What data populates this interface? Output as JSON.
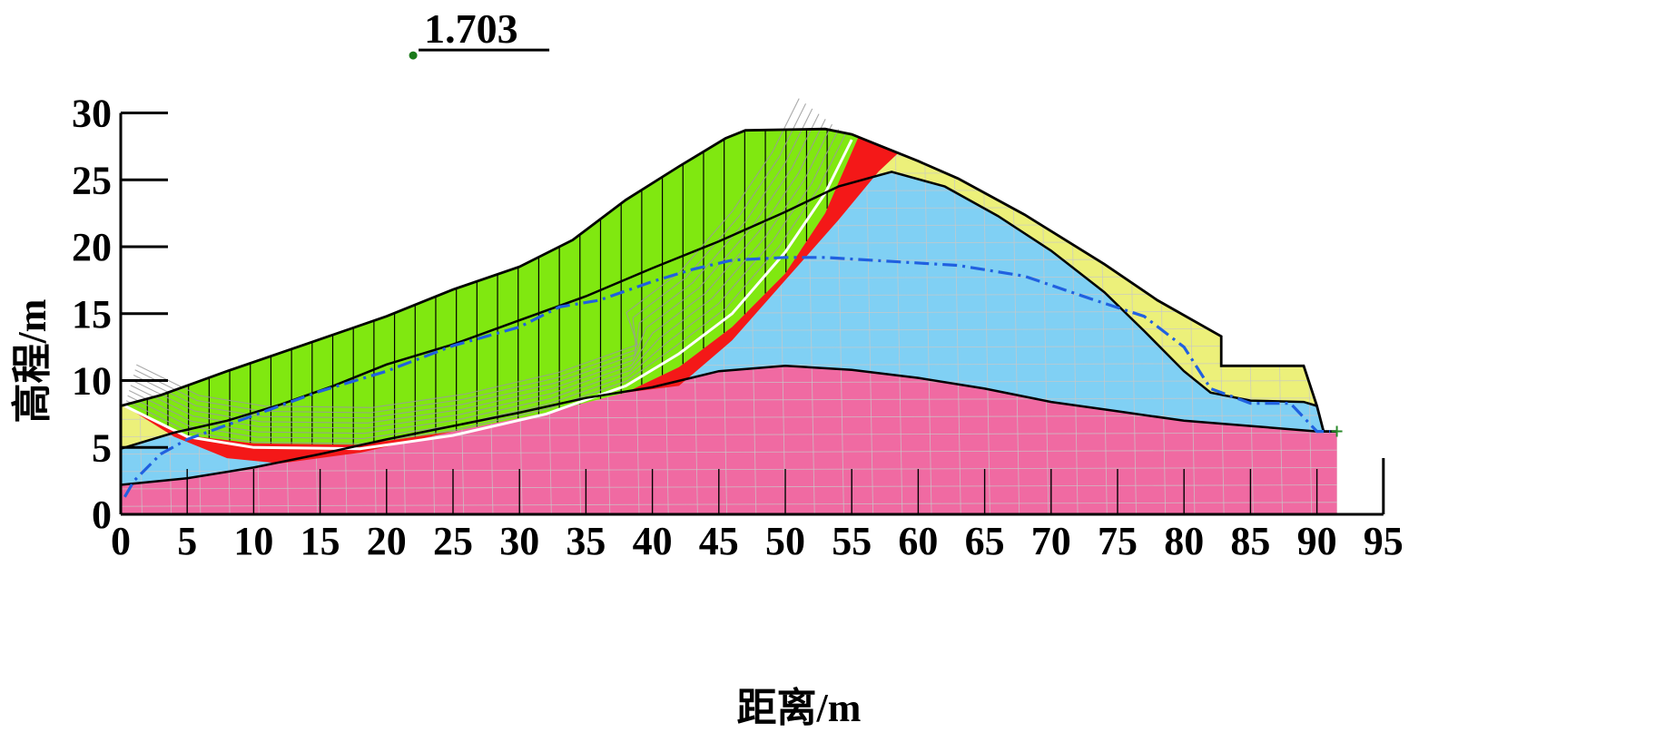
{
  "factor_of_safety": "1.703",
  "axes": {
    "x_title": "距离/m",
    "y_title": "高程/m",
    "x_ticks": [
      "0",
      "5",
      "10",
      "15",
      "20",
      "25",
      "30",
      "35",
      "40",
      "45",
      "50",
      "55",
      "60",
      "65",
      "70",
      "75",
      "80",
      "85",
      "90",
      "95"
    ],
    "y_ticks": [
      "0",
      "5",
      "10",
      "15",
      "20",
      "25",
      "30"
    ],
    "x_range": [
      0,
      95
    ],
    "y_range": [
      0,
      30
    ]
  },
  "layers": {
    "sliding_mass": {
      "color": "#80e810"
    },
    "upper_soil": {
      "color": "#ecf07a"
    },
    "middle_soil": {
      "color": "#80d0f4"
    },
    "bedrock": {
      "color": "#f06aa2"
    },
    "slip_band": {
      "color": "#f41818"
    },
    "water_table": {
      "color": "#2060e0"
    }
  },
  "geometry": {
    "surface": [
      [
        0,
        8.1
      ],
      [
        3,
        8.9
      ],
      [
        8,
        10.7
      ],
      [
        13,
        12.4
      ],
      [
        20,
        14.8
      ],
      [
        25,
        16.8
      ],
      [
        30,
        18.5
      ],
      [
        34,
        20.5
      ],
      [
        38,
        23.5
      ],
      [
        42,
        26
      ],
      [
        45.5,
        28.1
      ],
      [
        47,
        28.7
      ],
      [
        53,
        28.8
      ],
      [
        55,
        28.4
      ],
      [
        57,
        27.6
      ],
      [
        60,
        26.4
      ],
      [
        63,
        25.1
      ],
      [
        68,
        22.4
      ],
      [
        74,
        18.7
      ],
      [
        78,
        16.0
      ],
      [
        82.8,
        13.3
      ],
      [
        82.8,
        11.1
      ],
      [
        89,
        11.1
      ],
      [
        90,
        8.1
      ],
      [
        90.5,
        6.2
      ],
      [
        91.5,
        6.2
      ],
      [
        91.5,
        0
      ],
      [
        0,
        0
      ]
    ],
    "rock_top": [
      [
        0,
        2.2
      ],
      [
        5,
        2.7
      ],
      [
        10,
        3.5
      ],
      [
        15,
        4.5
      ],
      [
        20,
        5.6
      ],
      [
        25,
        6.6
      ],
      [
        30,
        7.6
      ],
      [
        35,
        8.7
      ],
      [
        40,
        9.5
      ],
      [
        45,
        10.7
      ],
      [
        50,
        11.1
      ],
      [
        55,
        10.8
      ],
      [
        60,
        10.2
      ],
      [
        65,
        9.4
      ],
      [
        70,
        8.4
      ],
      [
        75,
        7.7
      ],
      [
        80,
        7.0
      ],
      [
        85,
        6.6
      ],
      [
        90,
        6.2
      ],
      [
        91.5,
        6.2
      ]
    ],
    "middle_top": [
      [
        0,
        4.9
      ],
      [
        4,
        6.1
      ],
      [
        8,
        7.0
      ],
      [
        12,
        8.2
      ],
      [
        16,
        9.6
      ],
      [
        20,
        11.2
      ],
      [
        25,
        12.7
      ],
      [
        30,
        14.5
      ],
      [
        35,
        16.3
      ],
      [
        40,
        18.4
      ],
      [
        45,
        20.4
      ],
      [
        50,
        22.6
      ],
      [
        54,
        24.5
      ],
      [
        58,
        25.6
      ],
      [
        62,
        24.5
      ],
      [
        66,
        22.3
      ],
      [
        70,
        19.7
      ],
      [
        74,
        16.6
      ],
      [
        77,
        13.7
      ],
      [
        80,
        10.7
      ],
      [
        82,
        9.1
      ],
      [
        85,
        8.5
      ],
      [
        89,
        8.4
      ],
      [
        90,
        8.1
      ]
    ],
    "slip_top": [
      [
        0.3,
        8.1
      ],
      [
        5,
        5.9
      ],
      [
        10,
        5.3
      ],
      [
        18,
        5.2
      ],
      [
        25,
        6.2
      ],
      [
        32,
        7.6
      ],
      [
        38,
        9.1
      ],
      [
        42,
        11.0
      ],
      [
        46,
        14.0
      ],
      [
        50,
        18.0
      ],
      [
        53,
        22.5
      ],
      [
        55.5,
        28.2
      ]
    ],
    "slip_bot": [
      [
        4,
        5.8
      ],
      [
        8,
        4.2
      ],
      [
        12,
        3.8
      ],
      [
        18,
        4.6
      ],
      [
        25,
        6.2
      ],
      [
        32,
        7.6
      ],
      [
        38,
        9.1
      ],
      [
        42,
        9.6
      ],
      [
        46,
        13.0
      ],
      [
        50,
        17.5
      ],
      [
        54,
        22.0
      ],
      [
        57,
        25.6
      ],
      [
        58.5,
        27.0
      ],
      [
        57,
        27.6
      ],
      [
        55.5,
        28.2
      ]
    ],
    "slip_line": [
      [
        0.3,
        8.1
      ],
      [
        5,
        5.8
      ],
      [
        10,
        5.0
      ],
      [
        18,
        4.9
      ],
      [
        25,
        5.9
      ],
      [
        32,
        7.5
      ],
      [
        38,
        9.6
      ],
      [
        42,
        12.0
      ],
      [
        46,
        15.0
      ],
      [
        50,
        19.6
      ],
      [
        53,
        24.0
      ],
      [
        55,
        28.0
      ]
    ],
    "water": [
      [
        0.3,
        1.3
      ],
      [
        1,
        2.5
      ],
      [
        3,
        4.5
      ],
      [
        5,
        5.6
      ],
      [
        10,
        7.4
      ],
      [
        15,
        9.2
      ],
      [
        20,
        10.7
      ],
      [
        25,
        12.6
      ],
      [
        30,
        14.0
      ],
      [
        33,
        15.5
      ],
      [
        36,
        16.0
      ],
      [
        40,
        17.4
      ],
      [
        43,
        18.3
      ],
      [
        46,
        19.0
      ],
      [
        50,
        19.2
      ],
      [
        53,
        19.2
      ],
      [
        58,
        18.9
      ],
      [
        63,
        18.6
      ],
      [
        68,
        17.8
      ],
      [
        73,
        16.1
      ],
      [
        77,
        14.8
      ],
      [
        80,
        12.5
      ],
      [
        82,
        9.4
      ],
      [
        85,
        8.3
      ],
      [
        88,
        8.3
      ],
      [
        90,
        6.2
      ],
      [
        91,
        6.2
      ]
    ],
    "fos_marker": [
      22,
      34.3
    ]
  }
}
